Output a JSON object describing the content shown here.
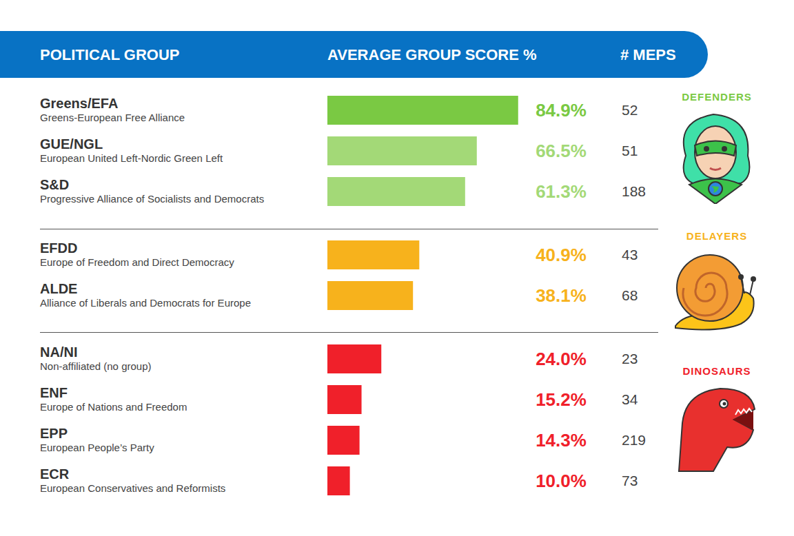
{
  "header": {
    "columns": [
      "POLITICAL GROUP",
      "AVERAGE GROUP SCORE %",
      "# MEPS"
    ]
  },
  "chart_data": [
    {
      "type": "bar",
      "orientation": "horizontal",
      "title": "DEFENDERS",
      "categories": [
        "Greens/EFA",
        "GUE/NGL",
        "S&D"
      ],
      "full_names": [
        "Greens-European Free Alliance",
        "European United Left-Nordic Green Left",
        "Progressive Alliance of Socialists and Democrats"
      ],
      "values": [
        84.9,
        66.5,
        61.3
      ],
      "value_labels": [
        "84.9%",
        "66.5%",
        "61.3%"
      ],
      "meps": [
        52,
        51,
        188
      ],
      "colors": [
        "#7ac943",
        "#a3d977",
        "#a3d977"
      ],
      "xlim": [
        0,
        100
      ],
      "data_labels": true,
      "tick_labels": "y"
    },
    {
      "type": "bar",
      "orientation": "horizontal",
      "title": "DELAYERS",
      "categories": [
        "EFDD",
        "ALDE"
      ],
      "full_names": [
        "Europe of Freedom and Direct Democracy",
        "Alliance of Liberals and Democrats for Europe"
      ],
      "values": [
        40.9,
        38.1
      ],
      "value_labels": [
        "40.9%",
        "38.1%"
      ],
      "meps": [
        43,
        68
      ],
      "colors": [
        "#f7b21c",
        "#f7b21c"
      ],
      "xlim": [
        0,
        100
      ],
      "data_labels": true,
      "tick_labels": "y"
    },
    {
      "type": "bar",
      "orientation": "horizontal",
      "title": "DINOSAURS",
      "categories": [
        "NA/NI",
        "ENF",
        "EPP",
        "ECR"
      ],
      "full_names": [
        "Non-affiliated (no group)",
        "Europe of Nations and Freedom",
        "European People’s Party",
        "European Conservatives and Reformists"
      ],
      "values": [
        24.0,
        15.2,
        14.3,
        10.0
      ],
      "value_labels": [
        "24.0%",
        "15.2%",
        "14.3%",
        "10.0%"
      ],
      "meps": [
        23,
        34,
        219,
        73
      ],
      "colors": [
        "#f0202a",
        "#f0202a",
        "#f0202a",
        "#f0202a"
      ],
      "xlim": [
        0,
        100
      ],
      "data_labels": true,
      "tick_labels": "y"
    }
  ]
}
